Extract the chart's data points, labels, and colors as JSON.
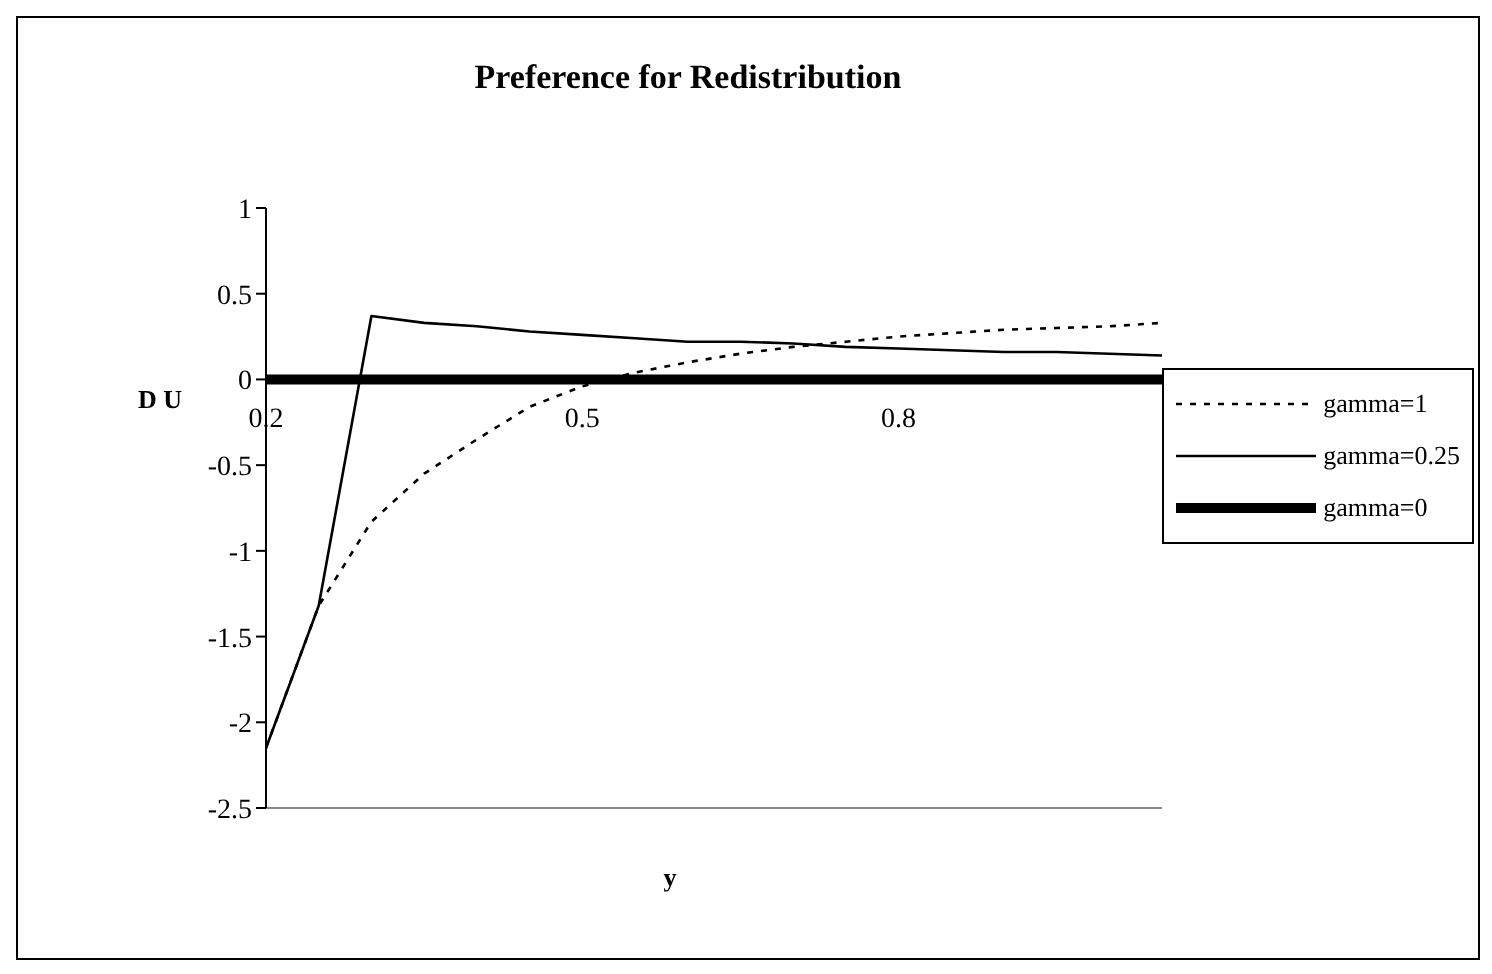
{
  "chart_data": {
    "type": "line",
    "title": "Preference for Redistribution",
    "xlabel": "y",
    "ylabel": "D U",
    "x": [
      0.2,
      0.25,
      0.3,
      0.35,
      0.4,
      0.45,
      0.5,
      0.55,
      0.6,
      0.65,
      0.7,
      0.75,
      0.8,
      0.85,
      0.9,
      0.95,
      1.0,
      1.05
    ],
    "series": [
      {
        "name": "gamma=1",
        "color": "#000000",
        "line_style": "dotted",
        "values": [
          -2.15,
          -1.32,
          -0.83,
          -0.55,
          -0.35,
          -0.16,
          -0.04,
          0.04,
          0.1,
          0.15,
          0.19,
          0.22,
          0.25,
          0.27,
          0.29,
          0.3,
          0.31,
          0.33
        ]
      },
      {
        "name": "gamma=0.25",
        "color": "#000000",
        "line_style": "solid",
        "values": [
          -2.15,
          -1.32,
          0.37,
          0.33,
          0.31,
          0.28,
          0.26,
          0.24,
          0.22,
          0.22,
          0.21,
          0.19,
          0.18,
          0.17,
          0.16,
          0.16,
          0.15,
          0.14
        ]
      },
      {
        "name": "gamma=0",
        "color": "#000000",
        "line_style": "solid",
        "values": [
          0,
          0,
          0,
          0,
          0,
          0,
          0,
          0,
          0,
          0,
          0,
          0,
          0,
          0,
          0,
          0,
          0,
          0
        ]
      }
    ],
    "xlim": [
      0.2,
      1.05
    ],
    "xticks": [
      0.2,
      0.5,
      0.8
    ],
    "ylim": [
      -2.5,
      1
    ],
    "yticks": [
      -2.5,
      -2,
      -1.5,
      -1,
      -0.5,
      0,
      0.5,
      1
    ],
    "grid": false,
    "legend": "right",
    "marker": "none"
  }
}
